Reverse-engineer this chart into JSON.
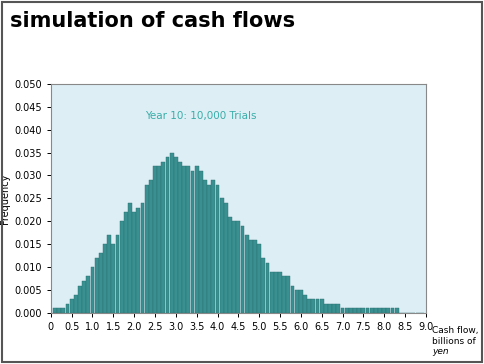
{
  "title": "simulation of cash flows",
  "annotation": "Year 10: 10,000 Trials",
  "annotation_color": "#3aada8",
  "ylabel": "Frequency",
  "xlabel_line1": "Cash flow,",
  "xlabel_line2": "billions of",
  "xlabel_line3": "yen",
  "bar_color": "#3a9090",
  "bar_edge_color": "#2a7070",
  "plot_bg_color": "#ddeef5",
  "outer_bg_color": "#ffffff",
  "title_color": "#000000",
  "xlim": [
    0,
    9.0
  ],
  "ylim": [
    0,
    0.05
  ],
  "yticks": [
    0.0,
    0.005,
    0.01,
    0.015,
    0.02,
    0.025,
    0.03,
    0.035,
    0.04,
    0.045,
    0.05
  ],
  "xticks": [
    0,
    0.5,
    1.0,
    1.5,
    2.0,
    2.5,
    3.0,
    3.5,
    4.0,
    4.5,
    5.0,
    5.5,
    6.0,
    6.5,
    7.0,
    7.5,
    8.0,
    8.5,
    9.0
  ],
  "bin_centers": [
    0.1,
    0.2,
    0.3,
    0.4,
    0.5,
    0.6,
    0.7,
    0.8,
    0.9,
    1.0,
    1.1,
    1.2,
    1.3,
    1.4,
    1.5,
    1.6,
    1.7,
    1.8,
    1.9,
    2.0,
    2.1,
    2.2,
    2.3,
    2.4,
    2.5,
    2.6,
    2.7,
    2.8,
    2.9,
    3.0,
    3.1,
    3.2,
    3.3,
    3.4,
    3.5,
    3.6,
    3.7,
    3.8,
    3.9,
    4.0,
    4.1,
    4.2,
    4.3,
    4.4,
    4.5,
    4.6,
    4.7,
    4.8,
    4.9,
    5.0,
    5.1,
    5.2,
    5.3,
    5.4,
    5.5,
    5.6,
    5.7,
    5.8,
    5.9,
    6.0,
    6.1,
    6.2,
    6.3,
    6.4,
    6.5,
    6.6,
    6.7,
    6.8,
    6.9,
    7.0,
    7.1,
    7.2,
    7.3,
    7.4,
    7.5,
    7.6,
    7.7,
    7.8,
    7.9,
    8.0,
    8.1,
    8.2,
    8.3,
    8.4,
    8.5,
    8.6,
    8.7,
    8.8,
    8.9
  ],
  "frequencies": [
    0.001,
    0.001,
    0.001,
    0.002,
    0.003,
    0.004,
    0.006,
    0.007,
    0.008,
    0.01,
    0.012,
    0.013,
    0.015,
    0.017,
    0.015,
    0.017,
    0.02,
    0.022,
    0.024,
    0.022,
    0.023,
    0.024,
    0.028,
    0.029,
    0.032,
    0.032,
    0.033,
    0.034,
    0.035,
    0.034,
    0.033,
    0.032,
    0.032,
    0.031,
    0.032,
    0.031,
    0.029,
    0.028,
    0.029,
    0.028,
    0.025,
    0.024,
    0.021,
    0.02,
    0.02,
    0.019,
    0.017,
    0.016,
    0.016,
    0.015,
    0.012,
    0.011,
    0.009,
    0.009,
    0.009,
    0.008,
    0.008,
    0.006,
    0.005,
    0.005,
    0.004,
    0.003,
    0.003,
    0.003,
    0.003,
    0.002,
    0.002,
    0.002,
    0.002,
    0.001,
    0.001,
    0.001,
    0.001,
    0.001,
    0.001,
    0.001,
    0.001,
    0.001,
    0.001,
    0.001,
    0.001,
    0.001,
    0.001,
    0.0,
    0.0,
    0.0,
    0.0,
    0.0,
    0.0
  ]
}
